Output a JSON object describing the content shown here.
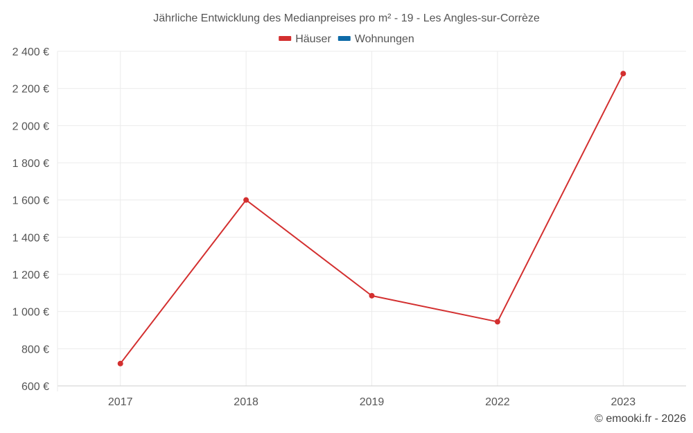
{
  "chart_data": {
    "type": "line",
    "title": "Jährliche Entwicklung des Medianpreises pro m² - 19 - Les Angles-sur-Corrèze",
    "categories": [
      "2017",
      "2018",
      "2019",
      "2022",
      "2023"
    ],
    "series": [
      {
        "name": "Häuser",
        "color": "#d32f2f",
        "values": [
          720,
          1600,
          1085,
          945,
          2280
        ]
      },
      {
        "name": "Wohnungen",
        "color": "#0d6aa8",
        "values": [
          null,
          null,
          null,
          null,
          null
        ]
      }
    ],
    "ylim": [
      600,
      2400
    ],
    "yticks": [
      600,
      800,
      1000,
      1200,
      1400,
      1600,
      1800,
      2000,
      2200,
      2400
    ],
    "ytick_labels": [
      "600 €",
      "800 €",
      "1 000 €",
      "1 200 €",
      "1 400 €",
      "1 600 €",
      "1 800 €",
      "2 000 €",
      "2 200 €",
      "2 400 €"
    ],
    "xlabel": "",
    "ylabel": "",
    "grid": true,
    "legend": "top-center"
  },
  "credit": "© emooki.fr - 2026"
}
